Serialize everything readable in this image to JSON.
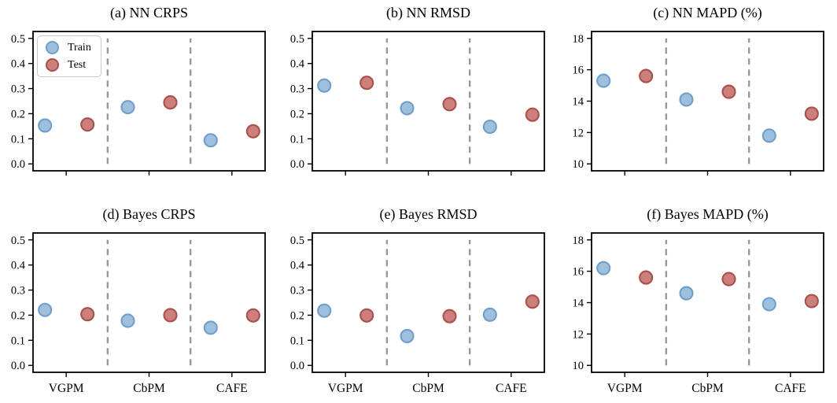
{
  "chart_data": {
    "type": "scatter",
    "categories": [
      "VGPM",
      "CbPM",
      "CAFE"
    ],
    "legend": {
      "position": "upper-left of panel (a)",
      "items": [
        {
          "label": "Train",
          "series": "train"
        },
        {
          "label": "Test",
          "series": "test"
        }
      ]
    },
    "colors": {
      "train_fill": "#9fc0dd",
      "train_edge": "#6f9ec9",
      "test_fill": "#cb807c",
      "test_edge": "#a94f4c",
      "divider": "#999999",
      "axis": "#000000"
    },
    "layout_hints": {
      "grid": "off",
      "rows": 2,
      "cols": 3,
      "dashed_dividers_between_groups": true,
      "xticklabels_bottom_row_only": true
    },
    "panels": [
      {
        "title": "(a) NN CRPS",
        "ylim": [
          0,
          0.5
        ],
        "yticks": [
          0.0,
          0.1,
          0.2,
          0.3,
          0.4,
          0.5
        ],
        "ytick_labels": [
          "0.0",
          "0.1",
          "0.2",
          "0.3",
          "0.4",
          "0.5"
        ],
        "show_xticklabels": false,
        "show_legend": true,
        "series": [
          {
            "name": "Train",
            "values": [
              0.153,
              0.226,
              0.094
            ]
          },
          {
            "name": "Test",
            "values": [
              0.157,
              0.245,
              0.13
            ]
          }
        ]
      },
      {
        "title": "(b) NN RMSD",
        "ylim": [
          0,
          0.5
        ],
        "yticks": [
          0.0,
          0.1,
          0.2,
          0.3,
          0.4,
          0.5
        ],
        "ytick_labels": [
          "0.0",
          "0.1",
          "0.2",
          "0.3",
          "0.4",
          "0.5"
        ],
        "show_xticklabels": false,
        "show_legend": false,
        "series": [
          {
            "name": "Train",
            "values": [
              0.312,
              0.222,
              0.148
            ]
          },
          {
            "name": "Test",
            "values": [
              0.323,
              0.238,
              0.196
            ]
          }
        ]
      },
      {
        "title": "(c) NN MAPD (%)",
        "ylim": [
          10,
          18
        ],
        "yticks": [
          10,
          12,
          14,
          16,
          18
        ],
        "ytick_labels": [
          "10",
          "12",
          "14",
          "16",
          "18"
        ],
        "show_xticklabels": false,
        "show_legend": false,
        "series": [
          {
            "name": "Train",
            "values": [
              15.3,
              14.1,
              11.8
            ]
          },
          {
            "name": "Test",
            "values": [
              15.6,
              14.6,
              13.2
            ]
          }
        ]
      },
      {
        "title": "(d) Bayes CRPS",
        "ylim": [
          0,
          0.5
        ],
        "yticks": [
          0.0,
          0.1,
          0.2,
          0.3,
          0.4,
          0.5
        ],
        "ytick_labels": [
          "0.0",
          "0.1",
          "0.2",
          "0.3",
          "0.4",
          "0.5"
        ],
        "show_xticklabels": true,
        "show_legend": false,
        "series": [
          {
            "name": "Train",
            "values": [
              0.221,
              0.178,
              0.15
            ]
          },
          {
            "name": "Test",
            "values": [
              0.204,
              0.2,
              0.199
            ]
          }
        ]
      },
      {
        "title": "(e) Bayes RMSD",
        "ylim": [
          0,
          0.5
        ],
        "yticks": [
          0.0,
          0.1,
          0.2,
          0.3,
          0.4,
          0.5
        ],
        "ytick_labels": [
          "0.0",
          "0.1",
          "0.2",
          "0.3",
          "0.4",
          "0.5"
        ],
        "show_xticklabels": true,
        "show_legend": false,
        "series": [
          {
            "name": "Train",
            "values": [
              0.218,
              0.117,
              0.202
            ]
          },
          {
            "name": "Test",
            "values": [
              0.199,
              0.196,
              0.254
            ]
          }
        ]
      },
      {
        "title": "(f) Bayes MAPD (%)",
        "ylim": [
          10,
          18
        ],
        "yticks": [
          10,
          12,
          14,
          16,
          18
        ],
        "ytick_labels": [
          "10",
          "12",
          "14",
          "16",
          "18"
        ],
        "show_xticklabels": true,
        "show_legend": false,
        "series": [
          {
            "name": "Train",
            "values": [
              16.2,
              14.6,
              13.9
            ]
          },
          {
            "name": "Test",
            "values": [
              15.6,
              15.5,
              14.1
            ]
          }
        ]
      }
    ]
  }
}
